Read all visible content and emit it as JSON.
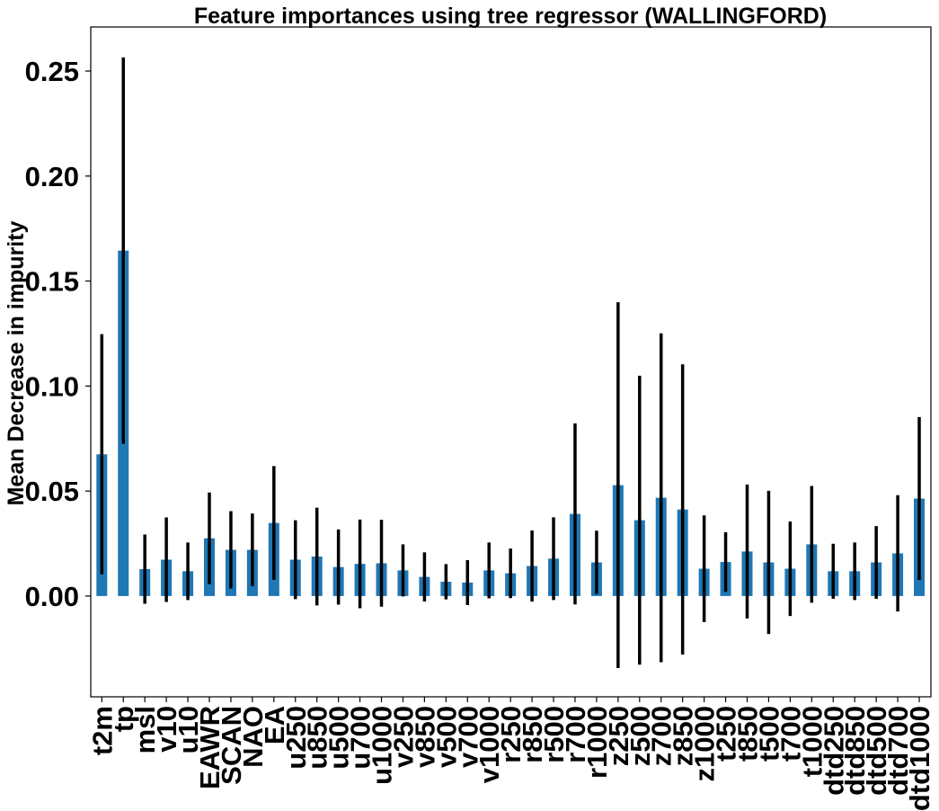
{
  "chart_data": {
    "type": "bar",
    "title": "Feature importances using tree regressor (WALLINGFORD)",
    "xlabel": "",
    "ylabel": "Mean Decrease in impurity",
    "ylim": [
      -0.048,
      0.271
    ],
    "yticks": [
      "0.00",
      "0.05",
      "0.10",
      "0.15",
      "0.20",
      "0.25"
    ],
    "grid": false,
    "bar_color": "#1f77b4",
    "error_color": "#000000",
    "categories": [
      "t2m",
      "tp",
      "msl",
      "v10",
      "u10",
      "EAWR",
      "SCAN",
      "NAO",
      "EA",
      "u250",
      "u850",
      "u500",
      "u700",
      "u1000",
      "v250",
      "v850",
      "v500",
      "v700",
      "v1000",
      "r250",
      "r850",
      "r500",
      "r700",
      "r1000",
      "z250",
      "z500",
      "z700",
      "z850",
      "z1000",
      "t250",
      "t850",
      "t500",
      "t700",
      "t1000",
      "dtd250",
      "dtd850",
      "dtd500",
      "dtd700",
      "dtd1000"
    ],
    "values": [
      0.0675,
      0.1645,
      0.0128,
      0.0173,
      0.0118,
      0.0275,
      0.022,
      0.022,
      0.0348,
      0.0173,
      0.0188,
      0.0138,
      0.0153,
      0.0156,
      0.0122,
      0.0091,
      0.0068,
      0.0064,
      0.0122,
      0.0108,
      0.0143,
      0.0178,
      0.0391,
      0.016,
      0.0528,
      0.0361,
      0.0468,
      0.0412,
      0.013,
      0.0162,
      0.0212,
      0.016,
      0.013,
      0.0246,
      0.0118,
      0.0118,
      0.016,
      0.0203,
      0.0464
    ],
    "errors": [
      0.0572,
      0.092,
      0.0165,
      0.0201,
      0.0137,
      0.0218,
      0.0184,
      0.0173,
      0.0271,
      0.0188,
      0.0233,
      0.0179,
      0.0211,
      0.0207,
      0.0124,
      0.0117,
      0.0084,
      0.0107,
      0.0133,
      0.0118,
      0.0169,
      0.0197,
      0.0431,
      0.0151,
      0.0871,
      0.0688,
      0.0783,
      0.0691,
      0.0254,
      0.0142,
      0.0319,
      0.0341,
      0.0225,
      0.0278,
      0.0131,
      0.0137,
      0.0173,
      0.0277,
      0.0388
    ]
  }
}
